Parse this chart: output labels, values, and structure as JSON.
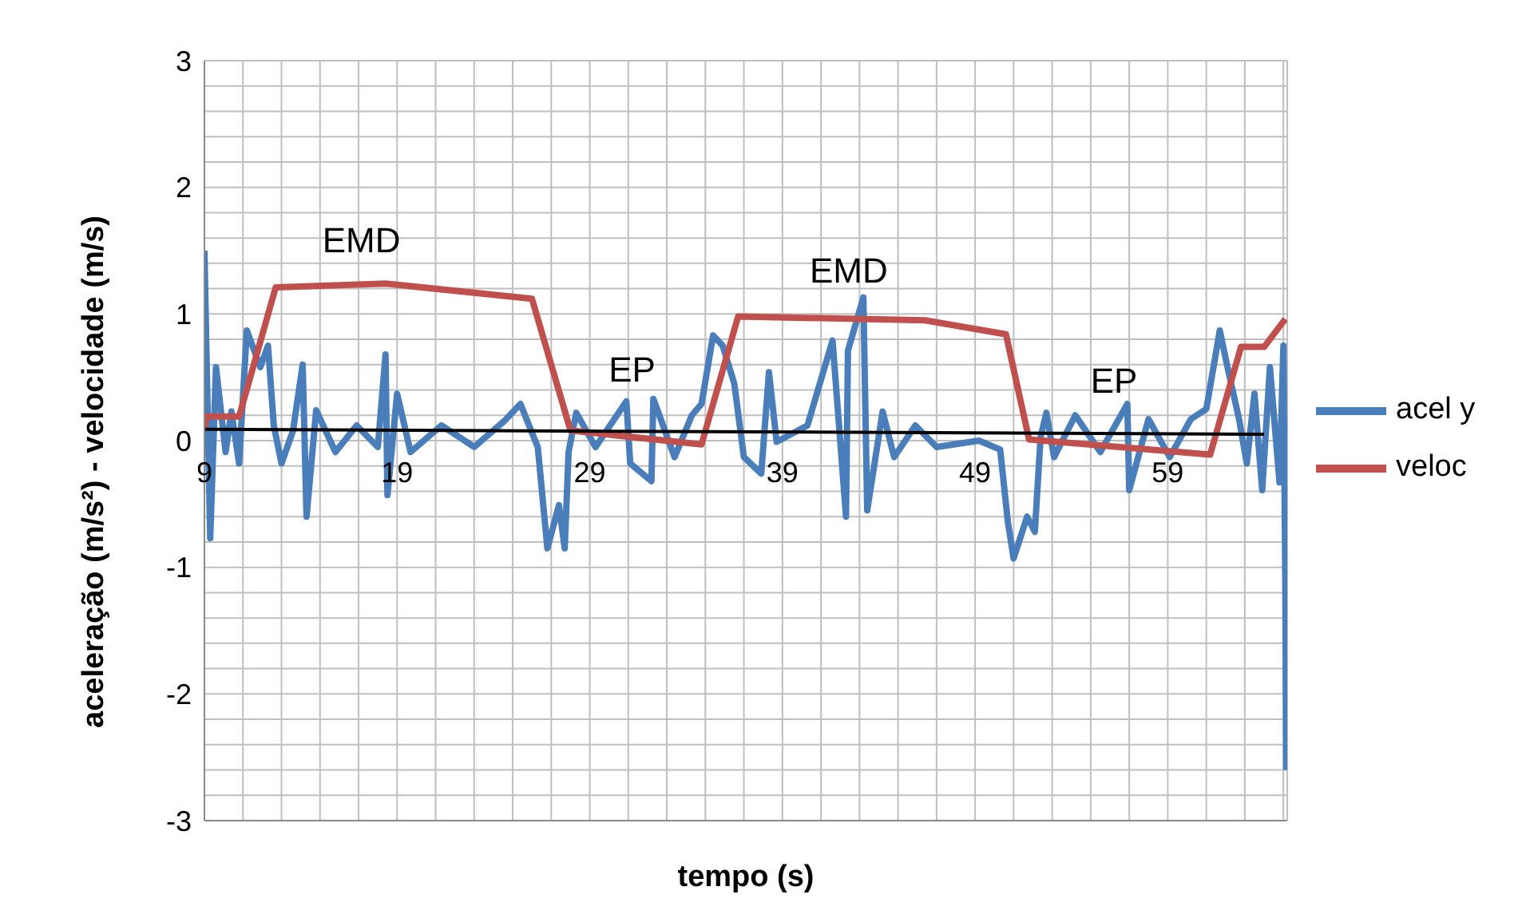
{
  "chart_data": {
    "type": "line",
    "xlabel": "tempo (s)",
    "ylabel": "aceleração (m/s²) - velocidade (m/s)",
    "xlim": [
      9,
      65.2
    ],
    "xticks": [
      9,
      {
        "value": 11,
        "label": null
      },
      {
        "value": 13,
        "label": null
      },
      {
        "value": 15,
        "label": null
      },
      {
        "value": 17,
        "label": null
      },
      19,
      {
        "value": 21,
        "label": null
      },
      {
        "value": 23,
        "label": null
      },
      {
        "value": 25,
        "label": null
      },
      {
        "value": 27,
        "label": null
      },
      29,
      {
        "value": 31,
        "label": null
      },
      {
        "value": 33,
        "label": null
      },
      {
        "value": 35,
        "label": null
      },
      {
        "value": 37,
        "label": null
      },
      39,
      {
        "value": 41,
        "label": null
      },
      {
        "value": 43,
        "label": null
      },
      {
        "value": 45,
        "label": null
      },
      {
        "value": 47,
        "label": null
      },
      49,
      {
        "value": 51,
        "label": null
      },
      {
        "value": 53,
        "label": null
      },
      {
        "value": 55,
        "label": null
      },
      {
        "value": 57,
        "label": null
      },
      59,
      {
        "value": 61,
        "label": null
      },
      {
        "value": 63,
        "label": null
      },
      {
        "value": 65,
        "label": null
      }
    ],
    "ylim": [
      -3,
      3
    ],
    "yticks": [
      -3,
      {
        "value": -2.8,
        "label": null
      },
      {
        "value": -2.6,
        "label": null
      },
      {
        "value": -2.4,
        "label": null
      },
      {
        "value": -2.2,
        "label": null
      },
      -2,
      {
        "value": -1.8,
        "label": null
      },
      {
        "value": -1.6,
        "label": null
      },
      {
        "value": -1.4,
        "label": null
      },
      {
        "value": -1.2,
        "label": null
      },
      -1,
      {
        "value": -0.8,
        "label": null
      },
      {
        "value": -0.6,
        "label": null
      },
      {
        "value": -0.4,
        "label": null
      },
      {
        "value": -0.2,
        "label": null
      },
      0,
      {
        "value": 0.2,
        "label": null
      },
      {
        "value": 0.4,
        "label": null
      },
      {
        "value": 0.6,
        "label": null
      },
      {
        "value": 0.8,
        "label": null
      },
      1,
      {
        "value": 1.2,
        "label": null
      },
      {
        "value": 1.4,
        "label": null
      },
      {
        "value": 1.6,
        "label": null
      },
      {
        "value": 1.8,
        "label": null
      },
      2,
      {
        "value": 2.2,
        "label": null
      },
      {
        "value": 2.4,
        "label": null
      },
      {
        "value": 2.6,
        "label": null
      },
      {
        "value": 2.8,
        "label": null
      },
      3
    ],
    "grid": true,
    "legend": "right",
    "line_style": "solid",
    "series": [
      {
        "name": "acel y",
        "color": "#4a7ebb",
        "x": [
          9.0,
          9.3,
          9.6,
          10.1,
          10.4,
          10.8,
          11.2,
          11.9,
          12.3,
          12.6,
          13.0,
          13.6,
          14.1,
          14.3,
          14.8,
          15.8,
          16.9,
          18.0,
          18.4,
          18.5,
          19.0,
          19.7,
          21.3,
          23.0,
          24.6,
          25.4,
          26.3,
          26.8,
          27.4,
          27.7,
          27.9,
          28.3,
          29.3,
          30.9,
          31.1,
          32.2,
          32.3,
          33.4,
          34.3,
          34.8,
          35.4,
          35.9,
          36.5,
          37.0,
          37.9,
          38.3,
          38.7,
          40.3,
          41.6,
          42.3,
          42.4,
          43.2,
          43.4,
          44.2,
          44.8,
          45.9,
          47.0,
          49.2,
          50.3,
          50.7,
          51.0,
          51.7,
          52.1,
          52.4,
          52.7,
          53.1,
          54.2,
          55.5,
          56.9,
          57.0,
          58.0,
          59.1,
          60.2,
          61.0,
          61.7,
          62.1,
          62.7,
          63.1,
          63.5,
          63.9,
          64.3,
          64.8,
          65.0,
          65.1,
          65.15
        ],
        "values": [
          1.5,
          -0.77,
          0.58,
          -0.09,
          0.23,
          -0.18,
          0.87,
          0.58,
          0.75,
          0.12,
          -0.18,
          0.08,
          0.6,
          -0.6,
          0.24,
          -0.09,
          0.12,
          -0.05,
          0.68,
          -0.43,
          0.37,
          -0.09,
          0.12,
          -0.05,
          0.16,
          0.29,
          -0.05,
          -0.85,
          -0.51,
          -0.85,
          -0.09,
          0.22,
          -0.05,
          0.31,
          -0.18,
          -0.32,
          0.33,
          -0.13,
          0.2,
          0.29,
          0.83,
          0.75,
          0.45,
          -0.13,
          -0.26,
          0.54,
          -0.01,
          0.12,
          0.79,
          -0.6,
          0.71,
          1.13,
          -0.55,
          0.23,
          -0.13,
          0.12,
          -0.05,
          0.0,
          -0.07,
          -0.64,
          -0.93,
          -0.6,
          -0.72,
          0.03,
          0.22,
          -0.13,
          0.2,
          -0.09,
          0.29,
          -0.39,
          0.17,
          -0.13,
          0.17,
          0.25,
          0.87,
          0.58,
          0.17,
          -0.18,
          0.37,
          -0.39,
          0.58,
          -0.33,
          0.75,
          -1.1,
          -2.6
        ]
      },
      {
        "name": "veloc",
        "color": "#c0504d",
        "x": [
          9.0,
          9.1,
          10.8,
          12.7,
          18.4,
          26.0,
          28.0,
          34.8,
          36.7,
          46.4,
          50.6,
          51.8,
          61.2,
          62.8,
          64.0,
          65.1
        ],
        "values": [
          0.08,
          0.19,
          0.19,
          1.21,
          1.24,
          1.12,
          0.08,
          -0.03,
          0.98,
          0.95,
          0.84,
          0.01,
          -0.11,
          0.74,
          0.74,
          0.96
        ]
      },
      {
        "type": "line",
        "color": "#000000",
        "x": [
          9,
          64
        ],
        "values": [
          0.09,
          0.05
        ]
      }
    ],
    "annotations": [
      "EMD",
      "EP",
      "EMD",
      "EP"
    ]
  }
}
